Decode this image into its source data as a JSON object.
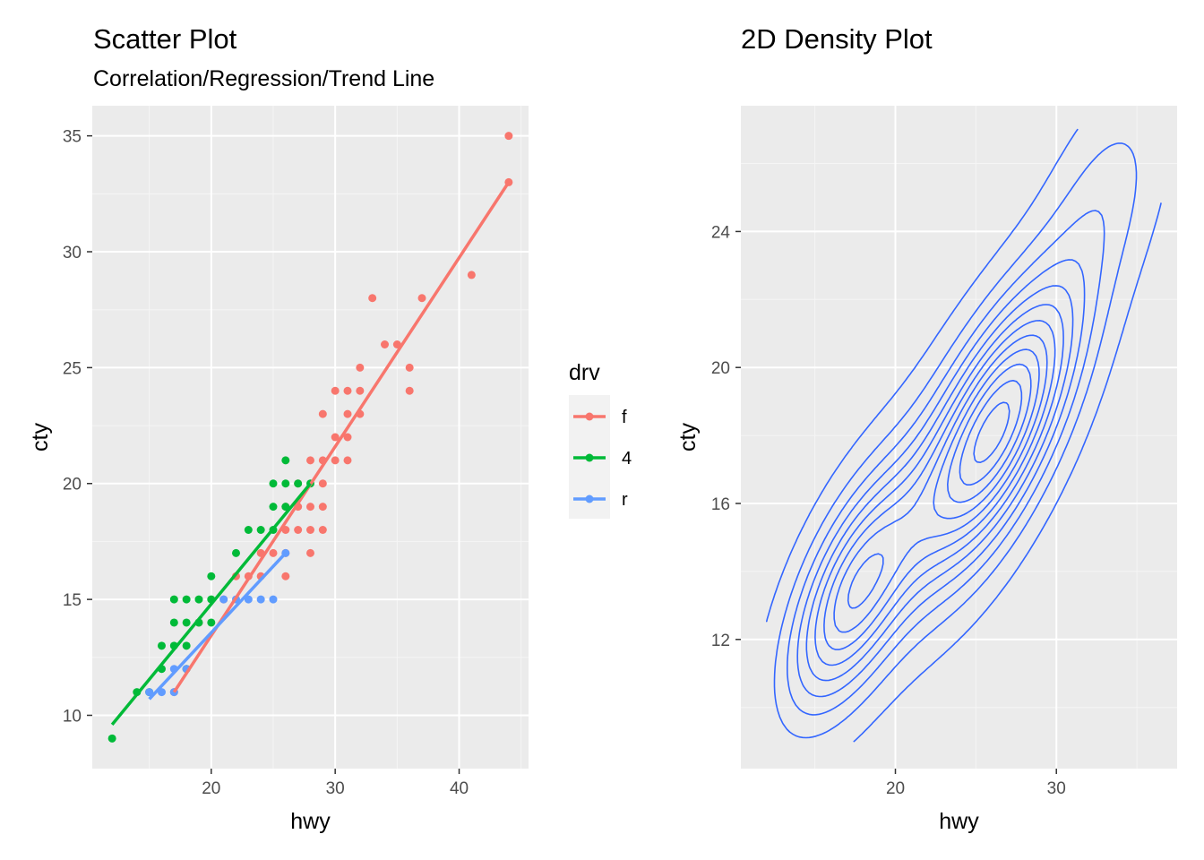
{
  "chart_data": [
    {
      "type": "scatter",
      "title": "Scatter Plot",
      "subtitle": "Correlation/Regression/Trend Line",
      "xlabel": "hwy",
      "ylabel": "cty",
      "xlim": [
        10.4,
        45.6
      ],
      "ylim": [
        7.7,
        36.3
      ],
      "xticks": [
        20,
        30,
        40
      ],
      "yticks": [
        10,
        15,
        20,
        25,
        30,
        35
      ],
      "grid": true,
      "legend": {
        "title": "drv",
        "position": "right",
        "entries": [
          "f",
          "4",
          "r"
        ]
      },
      "colors": {
        "f": "#F8766D",
        "4": "#00BA38",
        "r": "#619CFF"
      },
      "series": [
        {
          "name": "f",
          "points": [
            [
              17,
              11
            ],
            [
              18,
              12
            ],
            [
              19,
              14
            ],
            [
              21,
              15
            ],
            [
              22,
              16
            ],
            [
              23,
              16
            ],
            [
              24,
              16
            ],
            [
              24,
              17
            ],
            [
              25,
              17
            ],
            [
              26,
              16
            ],
            [
              26,
              17
            ],
            [
              26,
              18
            ],
            [
              26,
              19
            ],
            [
              27,
              18
            ],
            [
              27,
              19
            ],
            [
              27,
              20
            ],
            [
              28,
              17
            ],
            [
              28,
              18
            ],
            [
              28,
              19
            ],
            [
              28,
              21
            ],
            [
              29,
              18
            ],
            [
              29,
              19
            ],
            [
              29,
              20
            ],
            [
              29,
              21
            ],
            [
              29,
              23
            ],
            [
              30,
              21
            ],
            [
              30,
              22
            ],
            [
              30,
              24
            ],
            [
              31,
              21
            ],
            [
              31,
              22
            ],
            [
              31,
              23
            ],
            [
              31,
              24
            ],
            [
              32,
              23
            ],
            [
              32,
              24
            ],
            [
              32,
              25
            ],
            [
              33,
              28
            ],
            [
              34,
              26
            ],
            [
              35,
              26
            ],
            [
              36,
              24
            ],
            [
              36,
              25
            ],
            [
              37,
              28
            ],
            [
              41,
              29
            ],
            [
              44,
              33
            ],
            [
              44,
              35
            ]
          ],
          "trend": [
            [
              17,
              11.0
            ],
            [
              44,
              33.0
            ]
          ]
        },
        {
          "name": "4",
          "points": [
            [
              12,
              9
            ],
            [
              14,
              11
            ],
            [
              15,
              11
            ],
            [
              16,
              12
            ],
            [
              16,
              13
            ],
            [
              17,
              13
            ],
            [
              17,
              14
            ],
            [
              17,
              15
            ],
            [
              18,
              12
            ],
            [
              18,
              13
            ],
            [
              18,
              14
            ],
            [
              18,
              15
            ],
            [
              19,
              14
            ],
            [
              19,
              15
            ],
            [
              20,
              14
            ],
            [
              20,
              15
            ],
            [
              20,
              16
            ],
            [
              22,
              17
            ],
            [
              23,
              18
            ],
            [
              24,
              18
            ],
            [
              25,
              18
            ],
            [
              25,
              19
            ],
            [
              25,
              20
            ],
            [
              26,
              19
            ],
            [
              26,
              20
            ],
            [
              26,
              21
            ],
            [
              27,
              20
            ],
            [
              28,
              20
            ]
          ],
          "trend": [
            [
              12,
              9.6
            ],
            [
              28,
              20.0
            ]
          ]
        },
        {
          "name": "r",
          "points": [
            [
              15,
              11
            ],
            [
              16,
              11
            ],
            [
              17,
              11
            ],
            [
              17,
              12
            ],
            [
              18,
              12
            ],
            [
              21,
              15
            ],
            [
              22,
              15
            ],
            [
              23,
              15
            ],
            [
              24,
              15
            ],
            [
              25,
              15
            ],
            [
              26,
              17
            ]
          ],
          "trend": [
            [
              15,
              10.7
            ],
            [
              26,
              17.0
            ]
          ]
        }
      ]
    },
    {
      "type": "contour",
      "title": "2D Density Plot",
      "xlabel": "hwy",
      "ylabel": "cty",
      "xlim": [
        10.4,
        37.5
      ],
      "ylim": [
        8.2,
        27.7
      ],
      "xticks": [
        20,
        30
      ],
      "yticks": [
        12,
        16,
        20,
        24
      ],
      "grid": true,
      "color": "#3366FF",
      "contour_levels": 12,
      "density_modes": [
        {
          "hwy": 17.5,
          "cty": 13.4,
          "peak": 0.5
        },
        {
          "hwy": 26.2,
          "cty": 18.2,
          "peak": 0.72
        }
      ]
    }
  ]
}
